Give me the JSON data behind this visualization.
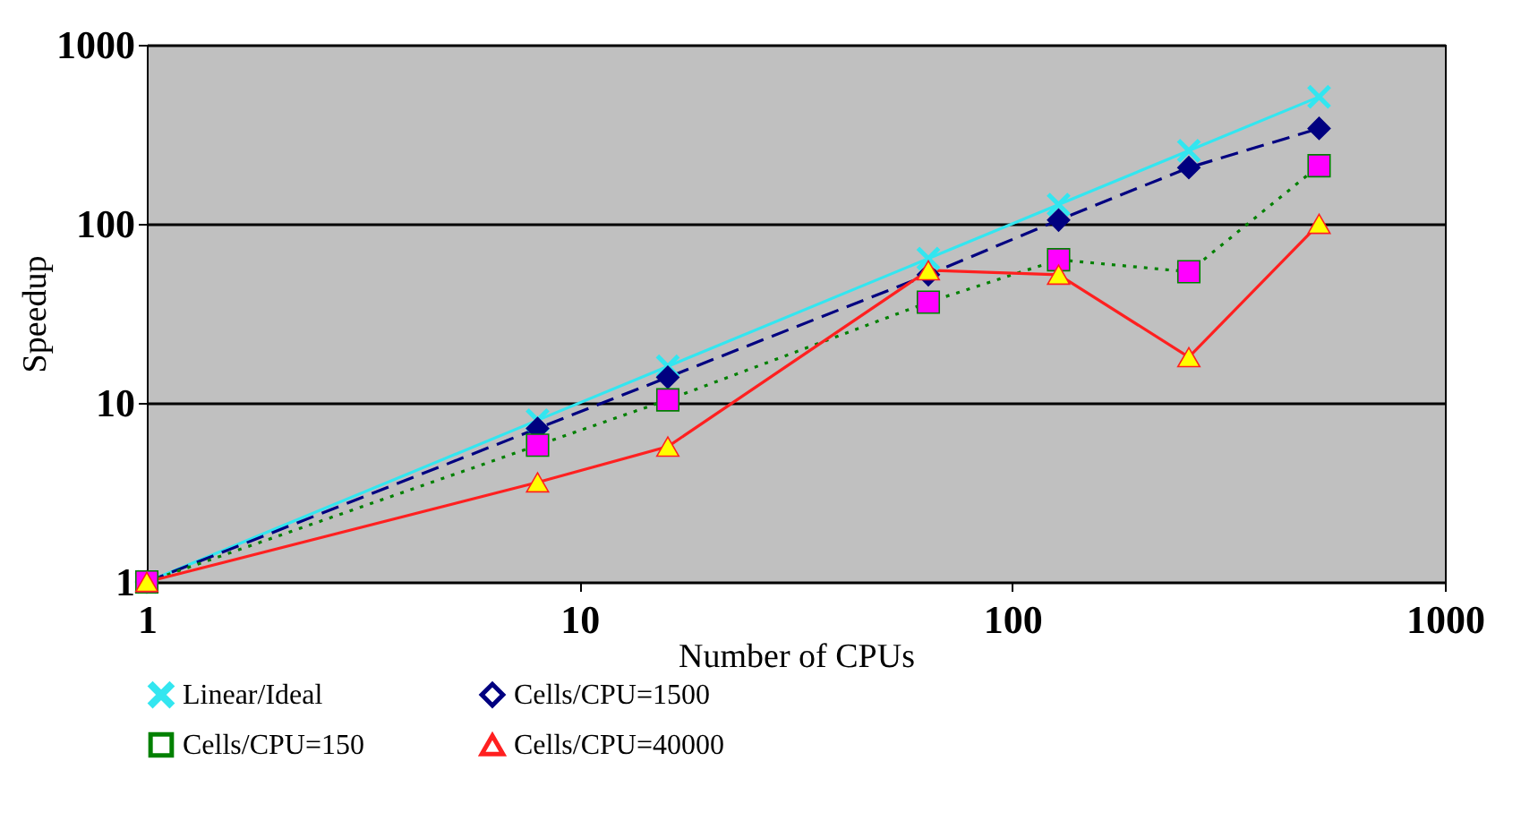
{
  "chart_data": {
    "type": "line",
    "xlabel": "Number of CPUs",
    "ylabel": "Speedup",
    "x": [
      1,
      8,
      16,
      64,
      128,
      256,
      512
    ],
    "series": [
      {
        "name": "Linear/Ideal",
        "color": "#33e6f0",
        "colors": [
          "#33e6f0",
          "#33e6f0",
          "#33e6f0",
          "#33e6f0",
          "#33e6f0",
          "#33e6f0",
          "#33e6f0"
        ],
        "marker": "cross",
        "line_style": "solid",
        "values": [
          1,
          8,
          16,
          64,
          128,
          256,
          512
        ]
      },
      {
        "name": "Cells/CPU=1500",
        "color": "#000080",
        "colors": [
          "#000080",
          "#000080",
          "#000080",
          "#000080",
          "#000080",
          "#000080",
          "#000080"
        ],
        "marker": "diamond",
        "line_style": "dashed",
        "values": [
          1,
          7.2,
          13.9,
          52,
          105,
          206,
          341
        ]
      },
      {
        "name": "Cells/CPU=150",
        "color": "#008000",
        "colors": [
          "#ff00ff",
          "#ff00ff",
          "#ff00ff",
          "#ff00ff",
          "#ff00ff",
          "#ff00ff",
          "#ff00ff"
        ],
        "marker": "square",
        "line_style": "dotted",
        "values": [
          1,
          5.8,
          10.4,
          36.5,
          63,
          54,
          211
        ]
      },
      {
        "name": "Cells/CPU=40000",
        "color": "#ff2020",
        "colors": [
          "#ffff00",
          "#ffff00",
          "#ffff00",
          "#ffff00",
          "#ffff00",
          "#ffff00",
          "#ffff00"
        ],
        "marker": "triangle",
        "line_style": "solid",
        "values": [
          1,
          3.6,
          5.7,
          55,
          52,
          18,
          100
        ]
      }
    ],
    "xlim": [
      1,
      1000
    ],
    "ylim": [
      1,
      1000
    ],
    "xticks": [
      1,
      10,
      100,
      1000
    ],
    "yticks": [
      1,
      10,
      100,
      1000
    ],
    "log": "xy",
    "grid": "y",
    "legend": "bottom"
  }
}
